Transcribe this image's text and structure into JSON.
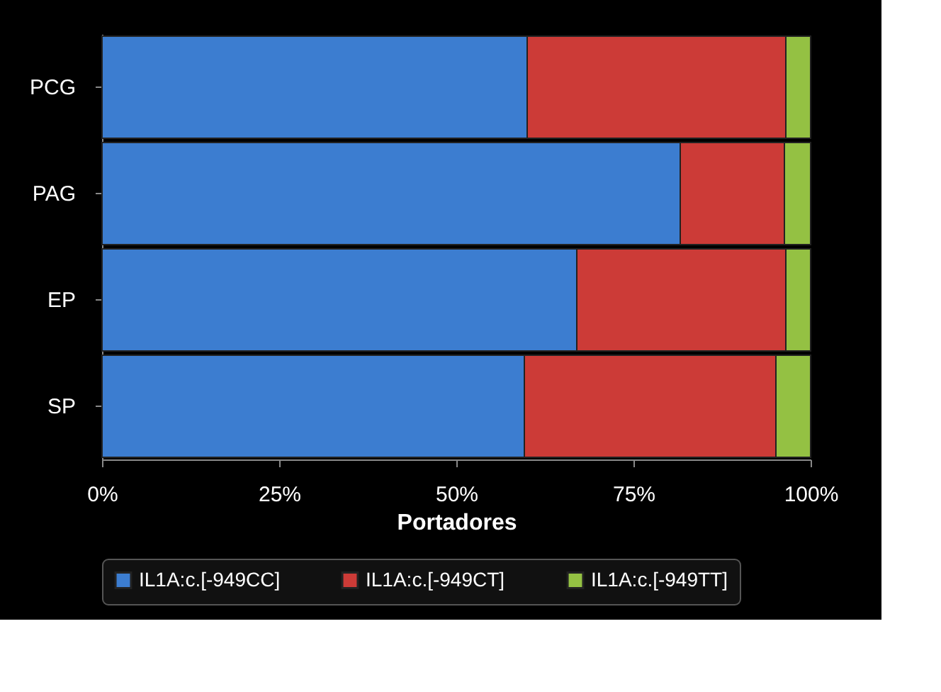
{
  "chart_data": {
    "type": "bar",
    "orientation": "horizontal",
    "stacked": true,
    "xlabel": "Portadores",
    "categories": [
      "PCG",
      "PAG",
      "EP",
      "SP"
    ],
    "series": [
      {
        "name": "IL1A:c.[-949CC]",
        "color": "#3c7dd0",
        "values": [
          60.0,
          81.6,
          67.0,
          59.6
        ]
      },
      {
        "name": "IL1A:c.[-949CT]",
        "color": "#cc3b37",
        "values": [
          36.5,
          14.7,
          29.5,
          35.5
        ]
      },
      {
        "name": "IL1A:c.[-949TT]",
        "color": "#94c143",
        "values": [
          3.5,
          3.7,
          3.5,
          4.9
        ]
      }
    ],
    "xlim": [
      0,
      100
    ],
    "xticks": [
      {
        "value": 0,
        "label": "0%"
      },
      {
        "value": 25,
        "label": "25%"
      },
      {
        "value": 50,
        "label": "50%"
      },
      {
        "value": 75,
        "label": "75%"
      },
      {
        "value": 100,
        "label": "100%"
      }
    ],
    "grid": false,
    "legend": "bottom"
  }
}
